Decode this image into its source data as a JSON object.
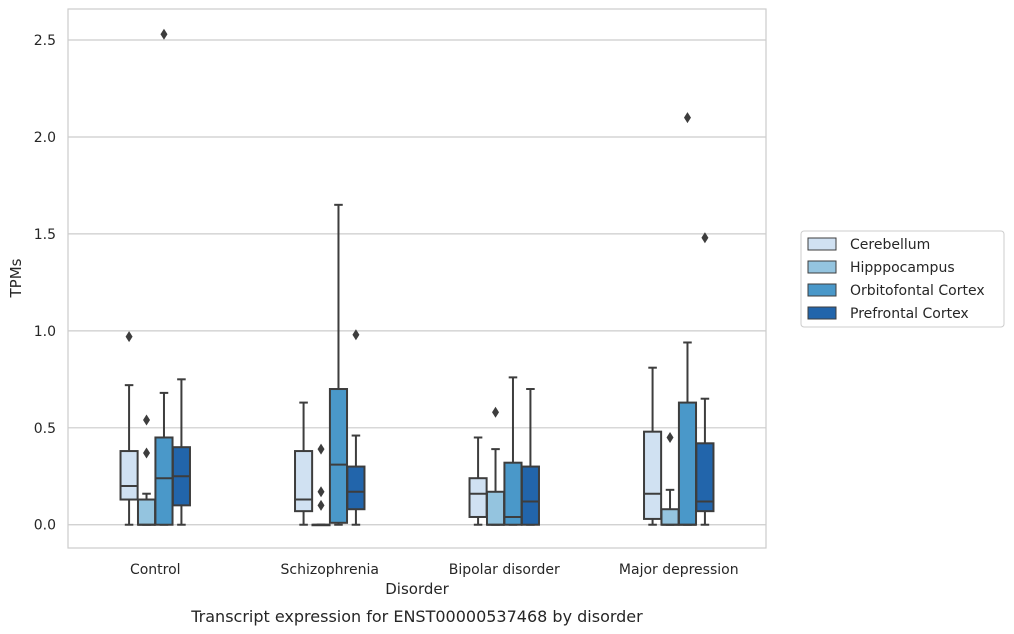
{
  "chart_data": {
    "type": "box",
    "caption": "Transcript expression for ENST00000537468 by disorder",
    "xlabel": "Disorder",
    "ylabel": "TPMs",
    "ylim": [
      -0.12,
      2.66
    ],
    "yticks": [
      0.0,
      0.5,
      1.0,
      1.5,
      2.0,
      2.5
    ],
    "ytick_labels": [
      "0.0",
      "0.5",
      "1.0",
      "1.5",
      "2.0",
      "2.5"
    ],
    "grid": "horizontal",
    "legend_position": "right",
    "categories": [
      "Control",
      "Schizophrenia",
      "Bipolar disorder",
      "Major depression"
    ],
    "series": [
      {
        "name": "Cerebellum",
        "color": "#d0e1f2",
        "boxes": [
          {
            "whislo": 0.0,
            "q1": 0.13,
            "med": 0.2,
            "q3": 0.38,
            "whishi": 0.72,
            "fliers": [
              0.97
            ]
          },
          {
            "whislo": 0.0,
            "q1": 0.07,
            "med": 0.13,
            "q3": 0.38,
            "whishi": 0.63,
            "fliers": []
          },
          {
            "whislo": 0.0,
            "q1": 0.04,
            "med": 0.16,
            "q3": 0.24,
            "whishi": 0.45,
            "fliers": []
          },
          {
            "whislo": 0.0,
            "q1": 0.03,
            "med": 0.16,
            "q3": 0.48,
            "whishi": 0.81,
            "fliers": []
          }
        ]
      },
      {
        "name": "Hipppocampus",
        "color": "#94c4df",
        "boxes": [
          {
            "whislo": 0.0,
            "q1": 0.0,
            "med": 0.0,
            "q3": 0.13,
            "whishi": 0.16,
            "fliers": [
              0.37,
              0.54
            ]
          },
          {
            "whislo": 0.0,
            "q1": 0.0,
            "med": 0.0,
            "q3": 0.0,
            "whishi": 0.0,
            "fliers": [
              0.1,
              0.17,
              0.39
            ]
          },
          {
            "whislo": 0.0,
            "q1": 0.0,
            "med": 0.0,
            "q3": 0.17,
            "whishi": 0.39,
            "fliers": [
              0.58
            ]
          },
          {
            "whislo": 0.0,
            "q1": 0.0,
            "med": 0.0,
            "q3": 0.08,
            "whishi": 0.18,
            "fliers": [
              0.45
            ]
          }
        ]
      },
      {
        "name": "Orbitofontal Cortex",
        "color": "#4a98c9",
        "boxes": [
          {
            "whislo": 0.0,
            "q1": 0.0,
            "med": 0.24,
            "q3": 0.45,
            "whishi": 0.68,
            "fliers": [
              2.53
            ]
          },
          {
            "whislo": 0.0,
            "q1": 0.01,
            "med": 0.31,
            "q3": 0.7,
            "whishi": 1.65,
            "fliers": []
          },
          {
            "whislo": 0.0,
            "q1": 0.0,
            "med": 0.04,
            "q3": 0.32,
            "whishi": 0.76,
            "fliers": []
          },
          {
            "whislo": 0.0,
            "q1": 0.0,
            "med": 0.0,
            "q3": 0.63,
            "whishi": 0.94,
            "fliers": [
              2.1
            ]
          }
        ]
      },
      {
        "name": "Prefrontal Cortex",
        "color": "#2265ab",
        "boxes": [
          {
            "whislo": 0.0,
            "q1": 0.1,
            "med": 0.25,
            "q3": 0.4,
            "whishi": 0.75,
            "fliers": []
          },
          {
            "whislo": 0.0,
            "q1": 0.08,
            "med": 0.17,
            "q3": 0.3,
            "whishi": 0.46,
            "fliers": [
              0.98
            ]
          },
          {
            "whislo": 0.0,
            "q1": 0.0,
            "med": 0.12,
            "q3": 0.3,
            "whishi": 0.7,
            "fliers": []
          },
          {
            "whislo": 0.0,
            "q1": 0.07,
            "med": 0.12,
            "q3": 0.42,
            "whishi": 0.65,
            "fliers": [
              1.48
            ]
          }
        ]
      }
    ]
  }
}
